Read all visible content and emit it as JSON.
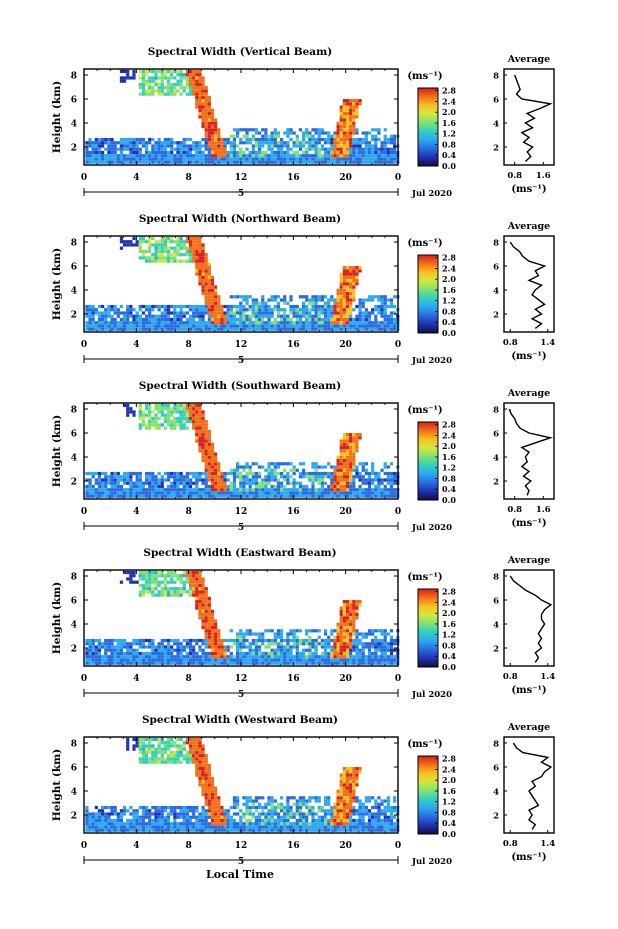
{
  "figure": {
    "x_tick_labels": [
      "0",
      "4",
      "8",
      "12",
      "16",
      "20",
      "0"
    ],
    "day_label": "5",
    "date_label": "Jul 2020",
    "x_axis_title": "Local Time",
    "y_axis_title": "Height (km)",
    "y_tick_labels": [
      "2",
      "4",
      "6",
      "8"
    ],
    "colorbar_unit": "(ms⁻¹)",
    "colorbar_tick_labels": [
      "0.0",
      "0.4",
      "0.8",
      "1.2",
      "1.6",
      "2.0",
      "2.4",
      "2.8"
    ],
    "colorbar_colors": [
      "#101040",
      "#2030b0",
      "#2a6ae0",
      "#2aa8f0",
      "#30d0c0",
      "#80e070",
      "#d0e840",
      "#f8c020",
      "#f07018",
      "#d82020"
    ],
    "average_title": "Average",
    "average_unit": "(ms⁻¹)",
    "average_y_tick_labels": [
      "2",
      "4",
      "6",
      "8"
    ]
  },
  "chart_data": [
    {
      "type": "heatmap",
      "title": "Spectral Width (Vertical Beam)",
      "xlabel": "Local Time",
      "ylabel": "Height (km)",
      "xlim": [
        0,
        24
      ],
      "ylim": [
        0.5,
        8.5
      ],
      "colorbar": {
        "label": "(ms⁻¹)",
        "range": [
          0.0,
          2.9
        ]
      },
      "profile": {
        "title": "Average",
        "xlabel": "(ms⁻¹)",
        "xlim": [
          0.5,
          1.9
        ],
        "xticks": [
          "0.8",
          "1.6"
        ],
        "height_km": [
          0.8,
          1.2,
          1.6,
          2.0,
          2.4,
          2.8,
          3.2,
          3.6,
          4.0,
          4.4,
          4.8,
          5.2,
          5.6,
          6.0,
          6.4,
          6.8,
          7.2,
          7.6,
          8.0
        ],
        "value": [
          1.1,
          1.25,
          1.15,
          1.3,
          1.05,
          1.2,
          1.0,
          1.3,
          1.1,
          1.35,
          1.15,
          1.5,
          1.8,
          1.0,
          0.85,
          0.95,
          0.9,
          0.85,
          0.8
        ]
      }
    },
    {
      "type": "heatmap",
      "title": "Spectral Width (Northward Beam)",
      "xlabel": "Local Time",
      "ylabel": "Height (km)",
      "xlim": [
        0,
        24
      ],
      "ylim": [
        0.5,
        8.5
      ],
      "colorbar": {
        "label": "(ms⁻¹)",
        "range": [
          0.0,
          2.9
        ]
      },
      "profile": {
        "title": "Average",
        "xlabel": "(ms⁻¹)",
        "xlim": [
          0.7,
          1.5
        ],
        "xticks": [
          "0.8",
          "1.4"
        ],
        "height_km": [
          0.8,
          1.2,
          1.6,
          2.0,
          2.4,
          2.8,
          3.2,
          3.6,
          4.0,
          4.4,
          4.8,
          5.2,
          5.6,
          6.0,
          6.4,
          6.8,
          7.2,
          7.6,
          8.0
        ],
        "value": [
          1.2,
          1.3,
          1.15,
          1.3,
          1.2,
          1.35,
          1.25,
          1.15,
          1.2,
          1.3,
          1.1,
          1.25,
          1.2,
          1.35,
          1.1,
          1.0,
          0.95,
          0.85,
          0.8
        ]
      }
    },
    {
      "type": "heatmap",
      "title": "Spectral Width (Southward Beam)",
      "xlabel": "Local Time",
      "ylabel": "Height (km)",
      "xlim": [
        0,
        24
      ],
      "ylim": [
        0.5,
        8.5
      ],
      "colorbar": {
        "label": "(ms⁻¹)",
        "range": [
          0.0,
          2.9
        ]
      },
      "profile": {
        "title": "Average",
        "xlabel": "(ms⁻¹)",
        "xlim": [
          0.5,
          1.9
        ],
        "xticks": [
          "0.8",
          "1.6"
        ],
        "height_km": [
          0.8,
          1.2,
          1.6,
          2.0,
          2.4,
          2.8,
          3.2,
          3.6,
          4.0,
          4.4,
          4.8,
          5.2,
          5.6,
          6.0,
          6.4,
          6.8,
          7.2,
          7.6,
          8.0
        ],
        "value": [
          1.15,
          1.2,
          1.1,
          1.25,
          1.05,
          1.2,
          1.0,
          1.15,
          1.1,
          1.2,
          1.0,
          1.4,
          1.8,
          1.2,
          0.95,
          0.85,
          0.8,
          0.7,
          0.65
        ]
      }
    },
    {
      "type": "heatmap",
      "title": "Spectral Width (Eastward Beam)",
      "xlabel": "Local Time",
      "ylabel": "Height (km)",
      "xlim": [
        0,
        24
      ],
      "ylim": [
        0.5,
        8.5
      ],
      "colorbar": {
        "label": "(ms⁻¹)",
        "range": [
          0.0,
          2.9
        ]
      },
      "profile": {
        "title": "Average",
        "xlabel": "(ms⁻¹)",
        "xlim": [
          0.7,
          1.5
        ],
        "xticks": [
          "0.8",
          "1.4"
        ],
        "height_km": [
          0.8,
          1.2,
          1.6,
          2.0,
          2.4,
          2.8,
          3.2,
          3.6,
          4.0,
          4.4,
          4.8,
          5.2,
          5.6,
          6.0,
          6.4,
          6.8,
          7.2,
          7.6,
          8.0
        ],
        "value": [
          1.2,
          1.25,
          1.2,
          1.3,
          1.25,
          1.3,
          1.25,
          1.3,
          1.35,
          1.3,
          1.3,
          1.35,
          1.45,
          1.3,
          1.2,
          1.05,
          0.95,
          0.85,
          0.8
        ]
      }
    },
    {
      "type": "heatmap",
      "title": "Spectral Width (Westward Beam)",
      "xlabel": "Local Time",
      "ylabel": "Height (km)",
      "xlim": [
        0,
        24
      ],
      "ylim": [
        0.5,
        8.5
      ],
      "colorbar": {
        "label": "(ms⁻¹)",
        "range": [
          0.0,
          2.9
        ]
      },
      "profile": {
        "title": "Average",
        "xlabel": "(ms⁻¹)",
        "xlim": [
          0.7,
          1.5
        ],
        "xticks": [
          "0.8",
          "1.4"
        ],
        "height_km": [
          0.8,
          1.2,
          1.6,
          2.0,
          2.4,
          2.8,
          3.2,
          3.6,
          4.0,
          4.4,
          4.8,
          5.2,
          5.6,
          6.0,
          6.4,
          6.8,
          7.2,
          7.6,
          8.0
        ],
        "value": [
          1.15,
          1.2,
          1.1,
          1.15,
          1.1,
          1.25,
          1.2,
          1.15,
          1.1,
          1.2,
          1.15,
          1.3,
          1.35,
          1.45,
          1.3,
          1.4,
          1.0,
          0.9,
          0.85
        ]
      }
    }
  ]
}
